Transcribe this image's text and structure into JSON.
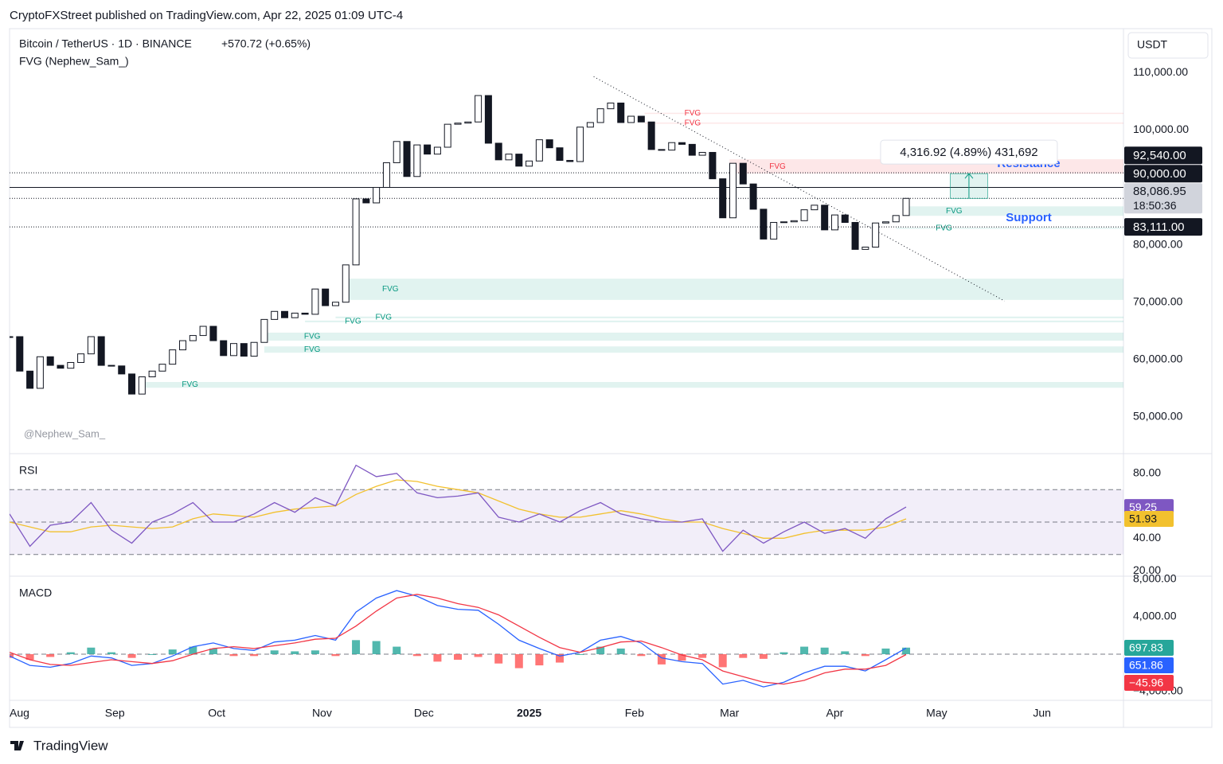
{
  "header": {
    "publisher": "CryptoFXStreet published on TradingView.com, Apr 22, 2025 01:09 UTC-4",
    "brand": "TradingView"
  },
  "chart_data": [
    {
      "type": "candlestick",
      "title": "Bitcoin / TetherUS · 1D · BINANCE",
      "change": "+570.72 (+0.65%)",
      "indicator": "FVG (Nephew_Sam_)",
      "currency": "USDT",
      "watermark": "@Nephew_Sam_",
      "x": [
        "2024-08-01",
        "2024-08-04",
        "2024-08-07",
        "2024-08-10",
        "2024-08-13",
        "2024-08-16",
        "2024-08-19",
        "2024-08-22",
        "2024-08-25",
        "2024-08-28",
        "2024-08-31",
        "2024-09-03",
        "2024-09-06",
        "2024-09-09",
        "2024-09-12",
        "2024-09-15",
        "2024-09-18",
        "2024-09-21",
        "2024-09-24",
        "2024-09-27",
        "2024-09-30",
        "2024-10-03",
        "2024-10-06",
        "2024-10-09",
        "2024-10-12",
        "2024-10-15",
        "2024-10-18",
        "2024-10-21",
        "2024-10-24",
        "2024-10-27",
        "2024-10-30",
        "2024-11-02",
        "2024-11-05",
        "2024-11-08",
        "2024-11-11",
        "2024-11-14",
        "2024-11-17",
        "2024-11-20",
        "2024-11-23",
        "2024-11-26",
        "2024-11-29",
        "2024-12-02",
        "2024-12-05",
        "2024-12-08",
        "2024-12-11",
        "2024-12-14",
        "2024-12-17",
        "2024-12-20",
        "2024-12-23",
        "2024-12-26",
        "2024-12-29",
        "2025-01-01",
        "2025-01-04",
        "2025-01-07",
        "2025-01-10",
        "2025-01-13",
        "2025-01-16",
        "2025-01-19",
        "2025-01-22",
        "2025-01-25",
        "2025-01-28",
        "2025-01-31",
        "2025-02-03",
        "2025-02-06",
        "2025-02-09",
        "2025-02-12",
        "2025-02-15",
        "2025-02-18",
        "2025-02-21",
        "2025-02-24",
        "2025-02-27",
        "2025-03-02",
        "2025-03-05",
        "2025-03-08",
        "2025-03-11",
        "2025-03-14",
        "2025-03-17",
        "2025-03-20",
        "2025-03-23",
        "2025-03-26",
        "2025-03-29",
        "2025-04-01",
        "2025-04-04",
        "2025-04-07",
        "2025-04-10",
        "2025-04-13",
        "2025-04-16",
        "2025-04-19",
        "2025-04-22"
      ],
      "close": [
        64000,
        58000,
        55000,
        60500,
        59000,
        58500,
        59500,
        61000,
        64000,
        59000,
        58900,
        57500,
        54000,
        57000,
        58000,
        59200,
        61700,
        63300,
        64200,
        65800,
        63300,
        60700,
        62800,
        60600,
        63000,
        67000,
        68400,
        67300,
        68100,
        67900,
        72300,
        69400,
        70000,
        76500,
        88000,
        87300,
        90000,
        94300,
        98000,
        91900,
        97400,
        95800,
        97000,
        101000,
        101200,
        101400,
        106000,
        97700,
        94800,
        95800,
        93700,
        94600,
        98300,
        96900,
        94700,
        94500,
        100500,
        101300,
        103700,
        104700,
        101300,
        102400,
        101400,
        96600,
        96500,
        97800,
        97500,
        95600,
        96100,
        91500,
        84700,
        94200,
        90600,
        86200,
        81000,
        83900,
        84000,
        84200,
        86100,
        86900,
        82600,
        85200,
        83900,
        79200,
        79600,
        83800,
        84000,
        85100,
        88086.95
      ],
      "colors": {
        "up": "#ffffff",
        "down": "#131722",
        "outline": "#131722"
      },
      "ylim": [
        43900,
        117100
      ],
      "yticks": [
        {
          "value": 110000,
          "label": "110,000.00"
        },
        {
          "value": 100000,
          "label": "100,000.00"
        },
        {
          "value": 80000,
          "label": "80,000.00"
        },
        {
          "value": 70000,
          "label": "70,000.00"
        },
        {
          "value": 60000,
          "label": "60,000.00"
        },
        {
          "value": 50000,
          "label": "50,000.00"
        }
      ],
      "xlim": [
        "2024-08-01",
        "2025-06-25"
      ],
      "xticks": [
        {
          "value": "2024-08-01",
          "label": "Aug"
        },
        {
          "value": "2024-09-01",
          "label": "Sep"
        },
        {
          "value": "2024-10-01",
          "label": "Oct"
        },
        {
          "value": "2024-11-01",
          "label": "Nov"
        },
        {
          "value": "2024-12-01",
          "label": "Dec"
        },
        {
          "value": "2025-01-01",
          "label": "2025"
        },
        {
          "value": "2025-02-01",
          "label": "Feb"
        },
        {
          "value": "2025-03-01",
          "label": "Mar"
        },
        {
          "value": "2025-04-01",
          "label": "Apr"
        },
        {
          "value": "2025-05-01",
          "label": "May"
        },
        {
          "value": "2025-06-01",
          "label": "Jun"
        }
      ],
      "levels": [
        {
          "value": 92540,
          "label": "92,540.00",
          "style": "dotted",
          "color": "#131722",
          "note": "Resistance"
        },
        {
          "value": 90000,
          "label": "90,000.00",
          "style": "solid",
          "color": "#131722"
        },
        {
          "value": 88086.95,
          "label": "88,086.95",
          "sublabel": "18:50:36",
          "style": "dotted",
          "color": "#d1d4dc"
        },
        {
          "value": 83111,
          "label": "83,111.00",
          "style": "dotted",
          "color": "#131722",
          "note": "Support"
        }
      ],
      "note_color": "#2962ff",
      "fvg_colors": {
        "bearish": "#f23645",
        "bullish": "#089981"
      },
      "fvg": [
        {
          "top": 103000,
          "bottom": 102800,
          "start": "2025-02-04",
          "side": "bearish",
          "label": "FVG"
        },
        {
          "top": 101300,
          "bottom": 101100,
          "start": "2025-02-04",
          "side": "bearish",
          "label": "FVG"
        },
        {
          "top": 94900,
          "bottom": 92400,
          "start": "2025-03-01",
          "side": "bearish",
          "label": "FVG"
        },
        {
          "top": 86700,
          "bottom": 85050,
          "start": "2025-04-22",
          "side": "bullish",
          "label": "FVG"
        },
        {
          "top": 83000,
          "bottom": 82800,
          "start": "2025-04-19",
          "side": "bullish",
          "label": "FVG"
        },
        {
          "top": 74100,
          "bottom": 70400,
          "start": "2024-11-07",
          "side": "bullish",
          "label": "FVG"
        },
        {
          "top": 67500,
          "bottom": 67200,
          "start": "2024-11-05",
          "side": "bullish",
          "label": "FVG"
        },
        {
          "top": 66800,
          "bottom": 66500,
          "start": "2024-10-27",
          "side": "bullish",
          "label": "FVG"
        },
        {
          "top": 64700,
          "bottom": 63300,
          "start": "2024-10-15",
          "side": "bullish",
          "label": "FVG"
        },
        {
          "top": 62300,
          "bottom": 61200,
          "start": "2024-10-15",
          "side": "bullish",
          "label": "FVG"
        },
        {
          "top": 56100,
          "bottom": 55100,
          "start": "2024-09-09",
          "side": "bullish",
          "label": "FVG"
        }
      ],
      "trendline": [
        {
          "x": "2025-01-20",
          "y": 109300
        },
        {
          "x": "2025-05-21",
          "y": 70200
        }
      ],
      "measure": {
        "from": 88086.95,
        "to": 92403.87,
        "start": "2025-05-05",
        "end": "2025-05-16",
        "label": "4,316.92 (4.89%) 431,692",
        "color": "#089981"
      }
    },
    {
      "type": "rsi",
      "title": "RSI",
      "x": [
        "2024-08-01",
        "2024-08-07",
        "2024-08-13",
        "2024-08-19",
        "2024-08-25",
        "2024-08-31",
        "2024-09-06",
        "2024-09-12",
        "2024-09-18",
        "2024-09-24",
        "2024-09-30",
        "2024-10-06",
        "2024-10-12",
        "2024-10-18",
        "2024-10-24",
        "2024-10-30",
        "2024-11-05",
        "2024-11-11",
        "2024-11-17",
        "2024-11-23",
        "2024-11-29",
        "2024-12-05",
        "2024-12-11",
        "2024-12-17",
        "2024-12-23",
        "2024-12-29",
        "2025-01-04",
        "2025-01-10",
        "2025-01-16",
        "2025-01-22",
        "2025-01-28",
        "2025-02-03",
        "2025-02-09",
        "2025-02-15",
        "2025-02-21",
        "2025-02-27",
        "2025-03-05",
        "2025-03-11",
        "2025-03-17",
        "2025-03-23",
        "2025-03-29",
        "2025-04-04",
        "2025-04-10",
        "2025-04-16",
        "2025-04-22"
      ],
      "series": [
        {
          "color": "#7e57c2",
          "values": [
            55,
            35,
            48,
            50,
            62,
            45,
            37,
            50,
            55,
            62,
            50,
            50,
            55,
            62,
            56,
            65,
            60,
            85,
            78,
            80,
            68,
            65,
            66,
            68,
            53,
            50,
            55,
            50,
            57,
            62,
            55,
            52,
            50,
            50,
            52,
            32,
            45,
            37,
            44,
            50,
            43,
            46,
            40,
            52,
            59.25
          ]
        },
        {
          "color": "#f2c12e",
          "label_text_color": "#131722",
          "values": [
            50,
            47,
            44,
            44,
            47,
            48,
            47,
            46,
            47,
            52,
            55,
            54,
            53,
            56,
            58,
            59,
            60,
            67,
            72,
            76,
            75,
            72,
            70,
            68,
            63,
            58,
            55,
            53,
            53,
            55,
            57,
            55,
            52,
            50,
            50,
            46,
            43,
            40,
            40,
            43,
            45,
            45,
            45,
            47,
            51.93
          ]
        }
      ],
      "ylim": [
        17.6,
        91.2
      ],
      "yticks": [
        {
          "value": 80,
          "label": "80.00"
        },
        {
          "value": 40,
          "label": "40.00"
        },
        {
          "value": 20,
          "label": "20.00"
        }
      ],
      "bands": [
        70,
        50,
        30
      ],
      "band_fill": "#7e57c2"
    },
    {
      "type": "macd",
      "title": "MACD",
      "x": [
        "2024-08-01",
        "2024-08-07",
        "2024-08-13",
        "2024-08-19",
        "2024-08-25",
        "2024-08-31",
        "2024-09-06",
        "2024-09-12",
        "2024-09-18",
        "2024-09-24",
        "2024-09-30",
        "2024-10-06",
        "2024-10-12",
        "2024-10-18",
        "2024-10-24",
        "2024-10-30",
        "2024-11-05",
        "2024-11-11",
        "2024-11-17",
        "2024-11-23",
        "2024-11-29",
        "2024-12-05",
        "2024-12-11",
        "2024-12-17",
        "2024-12-23",
        "2024-12-29",
        "2025-01-04",
        "2025-01-10",
        "2025-01-16",
        "2025-01-22",
        "2025-01-28",
        "2025-02-03",
        "2025-02-09",
        "2025-02-15",
        "2025-02-21",
        "2025-02-27",
        "2025-03-05",
        "2025-03-11",
        "2025-03-17",
        "2025-03-23",
        "2025-03-29",
        "2025-04-04",
        "2025-04-10",
        "2025-04-16",
        "2025-04-22"
      ],
      "histogram": {
        "colors": {
          "up": "#26a69a",
          "down": "#ff5252"
        },
        "values": [
          -400,
          -600,
          -300,
          200,
          700,
          200,
          -400,
          0,
          500,
          800,
          600,
          -200,
          -200,
          400,
          300,
          400,
          -200,
          1500,
          1400,
          800,
          -200,
          -800,
          -600,
          -300,
          -1000,
          -1500,
          -1200,
          -900,
          0,
          800,
          600,
          -200,
          -1100,
          -700,
          -400,
          -1400,
          -400,
          -500,
          200,
          800,
          700,
          300,
          -200,
          600,
          697.83
        ]
      },
      "series": [
        {
          "color": "#2962ff",
          "values": [
            -200,
            -1200,
            -1400,
            -1000,
            -200,
            -400,
            -1200,
            -1000,
            -200,
            800,
            1200,
            600,
            400,
            1300,
            1500,
            2000,
            1500,
            4500,
            6000,
            6800,
            6200,
            5200,
            4800,
            4700,
            3200,
            1500,
            600,
            -200,
            200,
            1500,
            1900,
            1200,
            -400,
            -800,
            -1000,
            -3200,
            -2800,
            -3500,
            -3000,
            -2000,
            -1300,
            -1300,
            -1800,
            -600,
            651.86
          ]
        },
        {
          "color": "#f23645",
          "values": [
            200,
            -600,
            -1100,
            -1200,
            -900,
            -600,
            -800,
            -1000,
            -700,
            0,
            600,
            800,
            600,
            900,
            1200,
            1600,
            1700,
            3000,
            4600,
            6000,
            6400,
            6000,
            5400,
            5000,
            4200,
            3000,
            1800,
            700,
            200,
            700,
            1300,
            1400,
            700,
            -100,
            -600,
            -1800,
            -2400,
            -3000,
            -3200,
            -2800,
            -2000,
            -1600,
            -1600,
            -1200,
            -45.96
          ],
          "value_labels": [
            null,
            null,
            null,
            null,
            null,
            null,
            null,
            null,
            null,
            null,
            null,
            null,
            null,
            null,
            null,
            null,
            null,
            null,
            null,
            null,
            null,
            null,
            null,
            null,
            null,
            null,
            null,
            null,
            null,
            null,
            null,
            null,
            null,
            null,
            null,
            null,
            null,
            null,
            null,
            null,
            null,
            null,
            null,
            null,
            "−45.96"
          ]
        }
      ],
      "ylim": [
        -4940,
        8170
      ],
      "yticks": [
        {
          "value": 8000,
          "label": "8,000.00"
        },
        {
          "value": 4000,
          "label": "4,000.00"
        },
        {
          "value": -4000,
          "label": "−4,000.00"
        }
      ]
    }
  ]
}
